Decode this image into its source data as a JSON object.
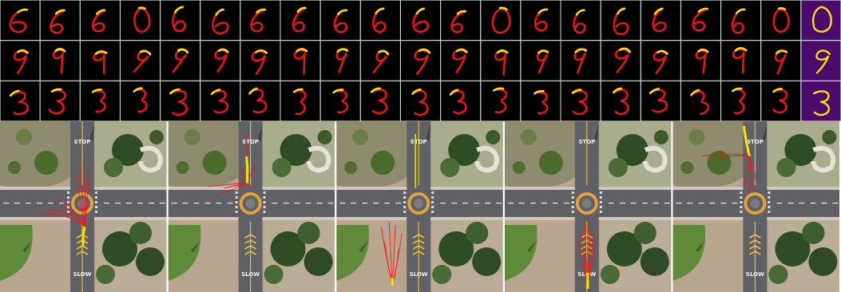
{
  "colors": {
    "background": "#ffffff",
    "cell_bg": "#000000",
    "last_col_bg": "#4a0a6e",
    "grid_line": "#cccccc",
    "history_stroke": "#ffe000",
    "prediction_stroke": "#ff1010",
    "road": "#5f6166",
    "road_marking": "#ffffff",
    "median_yellow": "#e8c23a",
    "roundabout_ring": "#e7a13a",
    "grass": "#5f8a3a",
    "sidewalk": "#cfc6b7",
    "sand": "#b7a58f",
    "tree": "#2f4d25"
  },
  "digit_grid": {
    "rows": [
      {
        "digit": "6",
        "cells": 20,
        "final": "0"
      },
      {
        "digit": "9",
        "cells": 20,
        "final": "9"
      },
      {
        "digit": "3",
        "cells": 20,
        "final": "3"
      }
    ]
  },
  "road_text": {
    "stop_top": "STOP",
    "slow_bottom": "SLOW"
  },
  "aerial_panels": [
    {
      "id": 1,
      "agent": "bike-north-to-west"
    },
    {
      "id": 2,
      "agent": "bike-north-fan"
    },
    {
      "id": 3,
      "agent": "pedestrian-south-fan"
    },
    {
      "id": 4,
      "agent": "bike-south-north"
    },
    {
      "id": 5,
      "agent": "bike-top-branch"
    }
  ]
}
